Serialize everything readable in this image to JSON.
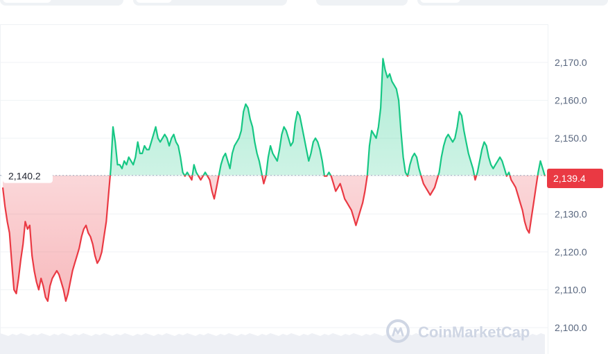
{
  "colors": {
    "up": "#16c784",
    "down": "#ea3943",
    "grid": "#eff2f5",
    "text": "#58667e"
  },
  "watermark": {
    "text": "CoinMarketCap",
    "icon": "coinmarketcap-logo-icon"
  },
  "open_label": "2,140.2",
  "current_label": "2,139.4",
  "chart_data": {
    "type": "line",
    "title": "",
    "xlabel": "",
    "ylabel": "",
    "ylim": [
      2098,
      2180
    ],
    "yticks": [
      2100,
      2110,
      2120,
      2130,
      2140,
      2150,
      2160,
      2170
    ],
    "ytick_labels": [
      "2,100.0",
      "2,110.0",
      "2,120.0",
      "2,130.0",
      "2,140.0",
      "2,150.0",
      "2,160.0",
      "2,170.0"
    ],
    "baseline": 2140.2,
    "current": 2139.4,
    "grid": true,
    "series": [
      {
        "values": [
          2137,
          2132,
          2128,
          2125,
          2117,
          2110,
          2109,
          2113,
          2118,
          2122,
          2128,
          2126,
          2127,
          2119,
          2115,
          2112,
          2110,
          2113,
          2111,
          2108,
          2107,
          2111,
          2113,
          2114,
          2115,
          2114,
          2112,
          2110,
          2107,
          2109,
          2112,
          2115,
          2117,
          2119,
          2121,
          2124,
          2126,
          2127,
          2125,
          2124,
          2122,
          2119,
          2117,
          2118,
          2120,
          2124,
          2128,
          2135,
          2142,
          2153,
          2149,
          2143,
          2143,
          2142,
          2144,
          2143,
          2145,
          2144,
          2143,
          2145,
          2149,
          2146,
          2146,
          2148,
          2147,
          2147,
          2149,
          2151,
          2153,
          2150,
          2149,
          2150,
          2151,
          2150,
          2148,
          2150,
          2151,
          2149,
          2148,
          2145,
          2141,
          2140,
          2141,
          2140,
          2139,
          2143,
          2141,
          2140,
          2139,
          2140,
          2141,
          2140,
          2139,
          2136,
          2134,
          2137,
          2140,
          2143,
          2145,
          2146,
          2144,
          2142,
          2146,
          2148,
          2149,
          2150,
          2152,
          2157,
          2159,
          2158,
          2155,
          2153,
          2149,
          2146,
          2144,
          2141,
          2138,
          2140,
          2145,
          2148,
          2146,
          2145,
          2144,
          2147,
          2151,
          2153,
          2152,
          2150,
          2148,
          2149,
          2154,
          2157,
          2156,
          2153,
          2150,
          2147,
          2144,
          2146,
          2149,
          2150,
          2149,
          2147,
          2144,
          2140,
          2140,
          2141,
          2140,
          2138,
          2136,
          2137,
          2138,
          2136,
          2134,
          2133,
          2132,
          2131,
          2129,
          2127,
          2129,
          2131,
          2133,
          2136,
          2140,
          2148,
          2152,
          2151,
          2150,
          2153,
          2158,
          2171,
          2168,
          2166,
          2167,
          2165,
          2164,
          2163,
          2160,
          2152,
          2145,
          2141,
          2140,
          2143,
          2145,
          2146,
          2145,
          2142,
          2140,
          2138,
          2137,
          2136,
          2135,
          2136,
          2137,
          2139,
          2141,
          2145,
          2148,
          2150,
          2151,
          2150,
          2149,
          2150,
          2153,
          2157,
          2156,
          2152,
          2149,
          2146,
          2144,
          2142,
          2139,
          2141,
          2144,
          2147,
          2149,
          2148,
          2145,
          2143,
          2142,
          2143,
          2144,
          2145,
          2144,
          2142,
          2140,
          2141,
          2139,
          2138,
          2137,
          2135,
          2133,
          2131,
          2128,
          2126,
          2125,
          2129,
          2133,
          2137,
          2141,
          2144,
          2142,
          2140
        ]
      }
    ]
  }
}
